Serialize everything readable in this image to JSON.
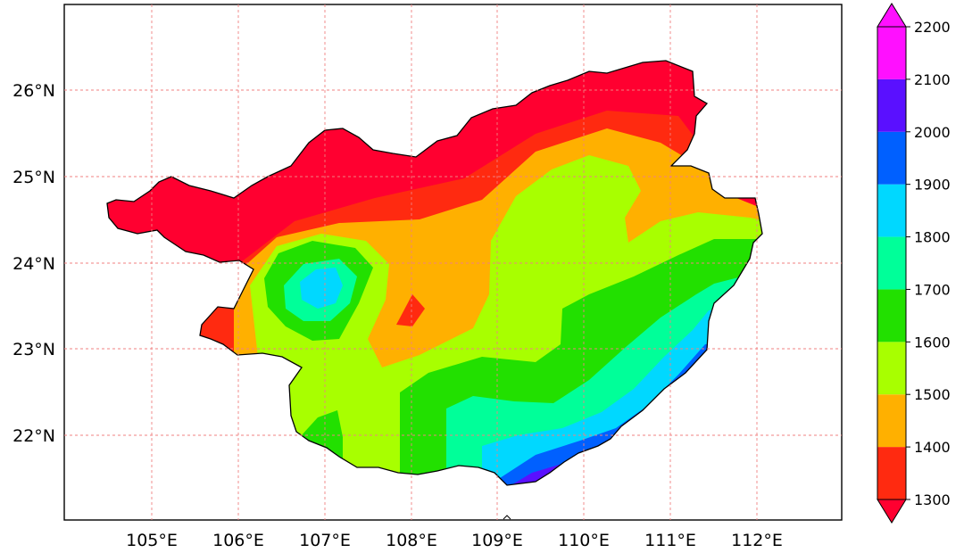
{
  "map": {
    "lon_ticks": [
      "105°E",
      "106°E",
      "107°E",
      "108°E",
      "109°E",
      "110°E",
      "111°E",
      "112°E"
    ],
    "lat_ticks": [
      "22°N",
      "23°N",
      "24°N",
      "25°N",
      "26°N"
    ],
    "lon_range": [
      104.0,
      113.0
    ],
    "lat_range": [
      21.05,
      27.0
    ],
    "grid": true,
    "region_outline": "Guangxi province boundary",
    "fill_type": "filled contours"
  },
  "colorbar": {
    "placement": "right",
    "extend": "both",
    "levels": [
      "1300",
      "1400",
      "1500",
      "1600",
      "1700",
      "1800",
      "1900",
      "2000",
      "2100",
      "2200"
    ],
    "colors": [
      "#ff2a10",
      "#ffb000",
      "#a8ff00",
      "#22e000",
      "#00ff99",
      "#00d8ff",
      "#0060ff",
      "#5a10ff",
      "#ff10ff"
    ],
    "under_color": "#ff0030",
    "over_color": "#ff10ff"
  }
}
